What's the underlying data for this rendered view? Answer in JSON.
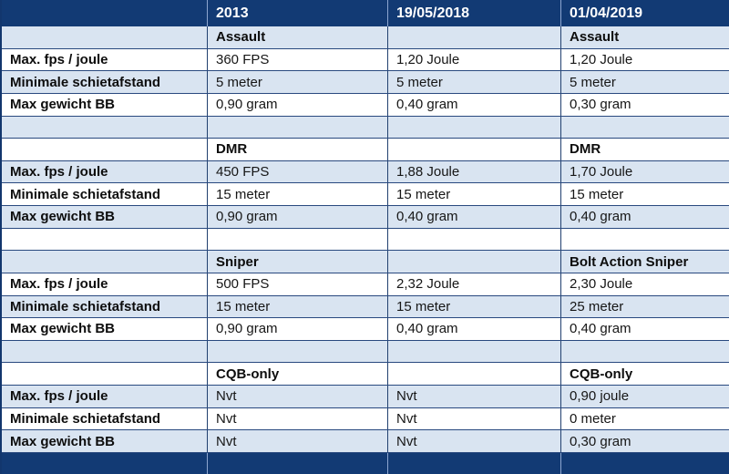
{
  "table": {
    "columns": [
      "",
      "2013",
      "19/05/2018",
      "01/04/2019"
    ],
    "row_labels": [
      "Max. fps / joule",
      "Minimale schietafstand",
      "Max gewicht BB"
    ],
    "sections": [
      {
        "names": [
          "Assault",
          "",
          "Assault"
        ],
        "rows": [
          [
            "360 FPS",
            "1,20 Joule",
            "1,20 Joule"
          ],
          [
            "5 meter",
            "5 meter",
            "5 meter"
          ],
          [
            "0,90 gram",
            "0,40 gram",
            "0,30 gram"
          ]
        ]
      },
      {
        "names": [
          "DMR",
          "",
          "DMR"
        ],
        "rows": [
          [
            "450 FPS",
            "1,88 Joule",
            "1,70 Joule"
          ],
          [
            "15 meter",
            "15 meter",
            "15 meter"
          ],
          [
            "0,90 gram",
            "0,40 gram",
            "0,40 gram"
          ]
        ]
      },
      {
        "names": [
          "Sniper",
          "",
          "Bolt Action Sniper"
        ],
        "rows": [
          [
            "500 FPS",
            "2,32 Joule",
            "2,30 Joule"
          ],
          [
            "15 meter",
            "15 meter",
            "25 meter"
          ],
          [
            "0,90 gram",
            "0,40 gram",
            "0,40 gram"
          ]
        ]
      },
      {
        "names": [
          "CQB-only",
          "",
          "CQB-only"
        ],
        "rows": [
          [
            "Nvt",
            "Nvt",
            "0,90 joule"
          ],
          [
            "Nvt",
            "Nvt",
            "0 meter"
          ],
          [
            "Nvt",
            "Nvt",
            "0,30 gram"
          ]
        ]
      }
    ]
  },
  "colors": {
    "header_bg": "#123a74",
    "band_bg": "#d9e4f1",
    "border_dark": "#21406f",
    "separator_light": "#8da6d0",
    "text": "#161616"
  }
}
